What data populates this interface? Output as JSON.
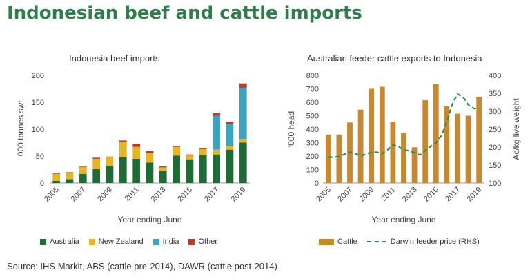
{
  "title": "Indonesian beef and cattle imports",
  "source": "Source: IHS Markit, ABS (cattle pre-2014), DAWR (cattle post-2014)",
  "chart_data": [
    {
      "type": "bar",
      "stacked": true,
      "title": "Indonesia beef imports",
      "xlabel": "Year ending June",
      "ylabel": "'000 tonnes swt",
      "ylim": [
        0,
        200
      ],
      "yticks": [
        0,
        50,
        100,
        150,
        200
      ],
      "categories": [
        "2005",
        "2006",
        "2007",
        "2008",
        "2009",
        "2010",
        "2011",
        "2012",
        "2013",
        "2014",
        "2015",
        "2016",
        "2017",
        "2018",
        "2019"
      ],
      "xtick_labels": [
        "2005",
        "2007",
        "2009",
        "2011",
        "2013",
        "2015",
        "2017",
        "2019"
      ],
      "series": [
        {
          "name": "Australia",
          "color": "#1e6b35",
          "values": [
            4,
            7,
            17,
            26,
            32,
            48,
            45,
            38,
            23,
            51,
            44,
            52,
            53,
            62,
            75
          ]
        },
        {
          "name": "New Zealand",
          "color": "#e8b522",
          "values": [
            13,
            12,
            13,
            19,
            16,
            28,
            22,
            17,
            6,
            16,
            7,
            11,
            9,
            6,
            7
          ]
        },
        {
          "name": "India",
          "color": "#3ba3c3",
          "values": [
            0,
            0,
            0,
            0,
            0,
            0,
            0,
            0,
            0,
            0,
            0,
            0,
            63,
            42,
            95
          ]
        },
        {
          "name": "Other",
          "color": "#b83b22",
          "values": [
            1,
            1,
            1,
            2,
            1,
            3,
            6,
            4,
            2,
            2,
            2,
            2,
            5,
            4,
            8
          ]
        }
      ],
      "grid": false,
      "legend": "bottom"
    },
    {
      "type": "bar+line",
      "title": "Australian feeder cattle exports to Indonesia",
      "xlabel": "Year ending June",
      "ylabel": "'000 head",
      "y2label": "Ac/kg live weight",
      "ylim": [
        0,
        800
      ],
      "yticks": [
        0,
        100,
        200,
        300,
        400,
        500,
        600,
        700,
        800
      ],
      "y2lim": [
        100,
        400
      ],
      "y2ticks": [
        100,
        150,
        200,
        250,
        300,
        350,
        400
      ],
      "categories": [
        "2005",
        "2006",
        "2007",
        "2008",
        "2009",
        "2010",
        "2011",
        "2012",
        "2013",
        "2014",
        "2015",
        "2016",
        "2017",
        "2018",
        "2019"
      ],
      "xtick_labels": [
        "2005",
        "2007",
        "2009",
        "2011",
        "2013",
        "2015",
        "2017",
        "2019"
      ],
      "bars": {
        "name": "Cattle",
        "color": "#c8892e",
        "values": [
          360,
          360,
          450,
          545,
          700,
          715,
          455,
          375,
          265,
          615,
          735,
          570,
          515,
          500,
          640
        ]
      },
      "line": {
        "name": "Darwin feeder price (RHS)",
        "color": "#2e8b57",
        "style": "dashed",
        "x": [
          2005,
          2005.5,
          2006,
          2006.5,
          2007,
          2007.5,
          2008,
          2008.5,
          2009,
          2009.5,
          2010,
          2010.5,
          2011,
          2011.5,
          2012,
          2012.5,
          2013,
          2013.5,
          2014,
          2014.5,
          2015,
          2015.5,
          2016,
          2016.5,
          2017,
          2017.5,
          2018,
          2018.5,
          2019
        ],
        "values": [
          172,
          172,
          174,
          180,
          186,
          182,
          176,
          180,
          186,
          186,
          182,
          192,
          206,
          202,
          192,
          190,
          184,
          178,
          190,
          202,
          212,
          232,
          270,
          318,
          348,
          340,
          318,
          308,
          306
        ]
      },
      "grid": false,
      "legend": "bottom"
    }
  ]
}
